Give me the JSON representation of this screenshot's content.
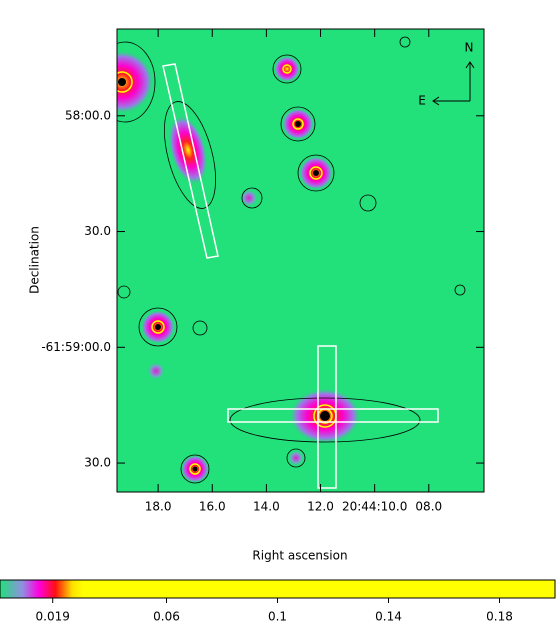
{
  "chart_data": {
    "type": "image",
    "xlabel": "Right ascension",
    "ylabel": "Declination",
    "xlim": [
      19.52,
      5.96
    ],
    "xticks": [
      {
        "value": 18,
        "label": "18.0"
      },
      {
        "value": 16,
        "label": "16.0"
      },
      {
        "value": 14,
        "label": "14.0"
      },
      {
        "value": 12,
        "label": "12.0"
      },
      {
        "value": 10,
        "label": "20:44:10.0"
      },
      {
        "value": 8,
        "label": "08.0"
      }
    ],
    "ylim": [
      -61.99375,
      -61.96042
    ],
    "yticks": [
      {
        "value": -61.966667,
        "label": "58:00.0"
      },
      {
        "value": -61.975,
        "label": "30.0"
      },
      {
        "value": -61.983333,
        "label": "-61:59:00.0"
      },
      {
        "value": -61.991667,
        "label": "30.0"
      }
    ],
    "compass": {
      "north": "N",
      "east": "E"
    },
    "colorbar": {
      "lim": [
        0,
        0.2
      ],
      "ticks": [
        0.019,
        0.06,
        0.1,
        0.14,
        0.18
      ]
    }
  }
}
